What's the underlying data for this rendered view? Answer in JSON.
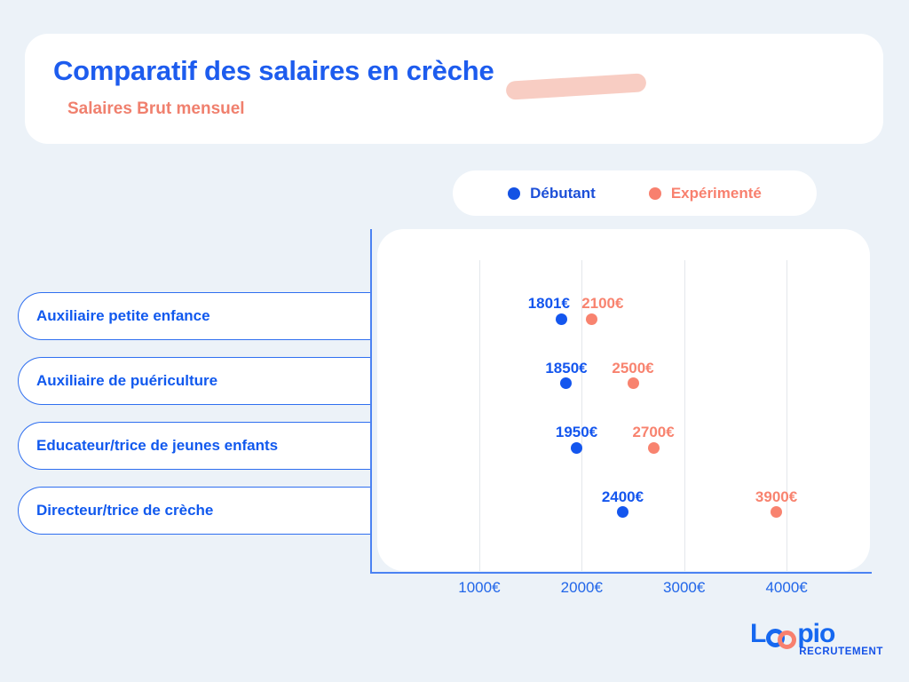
{
  "header": {
    "title": "Comparatif des salaires en crèche",
    "subtitle": "Salaires Brut mensuel"
  },
  "legend": {
    "items": [
      {
        "label": "Débutant",
        "color": "#1452e4",
        "text_color": "#1d50d8"
      },
      {
        "label": "Expérimenté",
        "color": "#f8806e",
        "text_color": "#f8806e"
      }
    ]
  },
  "chart_data": {
    "type": "scatter",
    "orientation": "horizontal-categories",
    "categories": [
      "Auxiliaire petite enfance",
      "Auxiliaire de puériculture",
      "Educateur/trice de jeunes enfants",
      "Directeur/trice de crèche"
    ],
    "series": [
      {
        "name": "Débutant",
        "color": "#1456ee",
        "values": [
          1801,
          1850,
          1950,
          2400
        ],
        "labels": [
          "1801€",
          "1850€",
          "1950€",
          "2400€"
        ]
      },
      {
        "name": "Expérimenté",
        "color": "#f8836f",
        "values": [
          2100,
          2500,
          2700,
          3900
        ],
        "labels": [
          "2100€",
          "2500€",
          "2700€",
          "3900€"
        ]
      }
    ],
    "x_ticks": [
      "1000€",
      "2000€",
      "3000€",
      "4000€"
    ],
    "x_tick_values": [
      1000,
      2000,
      3000,
      4000
    ],
    "xlim": [
      0,
      4800
    ],
    "grid": "vertical",
    "legend_position": "top-right"
  },
  "logo": {
    "brand_l": "L",
    "brand_rest": "pio",
    "tagline": "RECRUTEMENT"
  },
  "colors": {
    "background": "#ecf2f8",
    "card": "#ffffff",
    "title_blue": "#1d5cee",
    "salmon": "#f8806e",
    "swoosh_pink": "#f8cdc3",
    "axis_blue": "#4b82f2",
    "gridline": "#e4e7eb",
    "tick_blue": "#2166e9"
  }
}
